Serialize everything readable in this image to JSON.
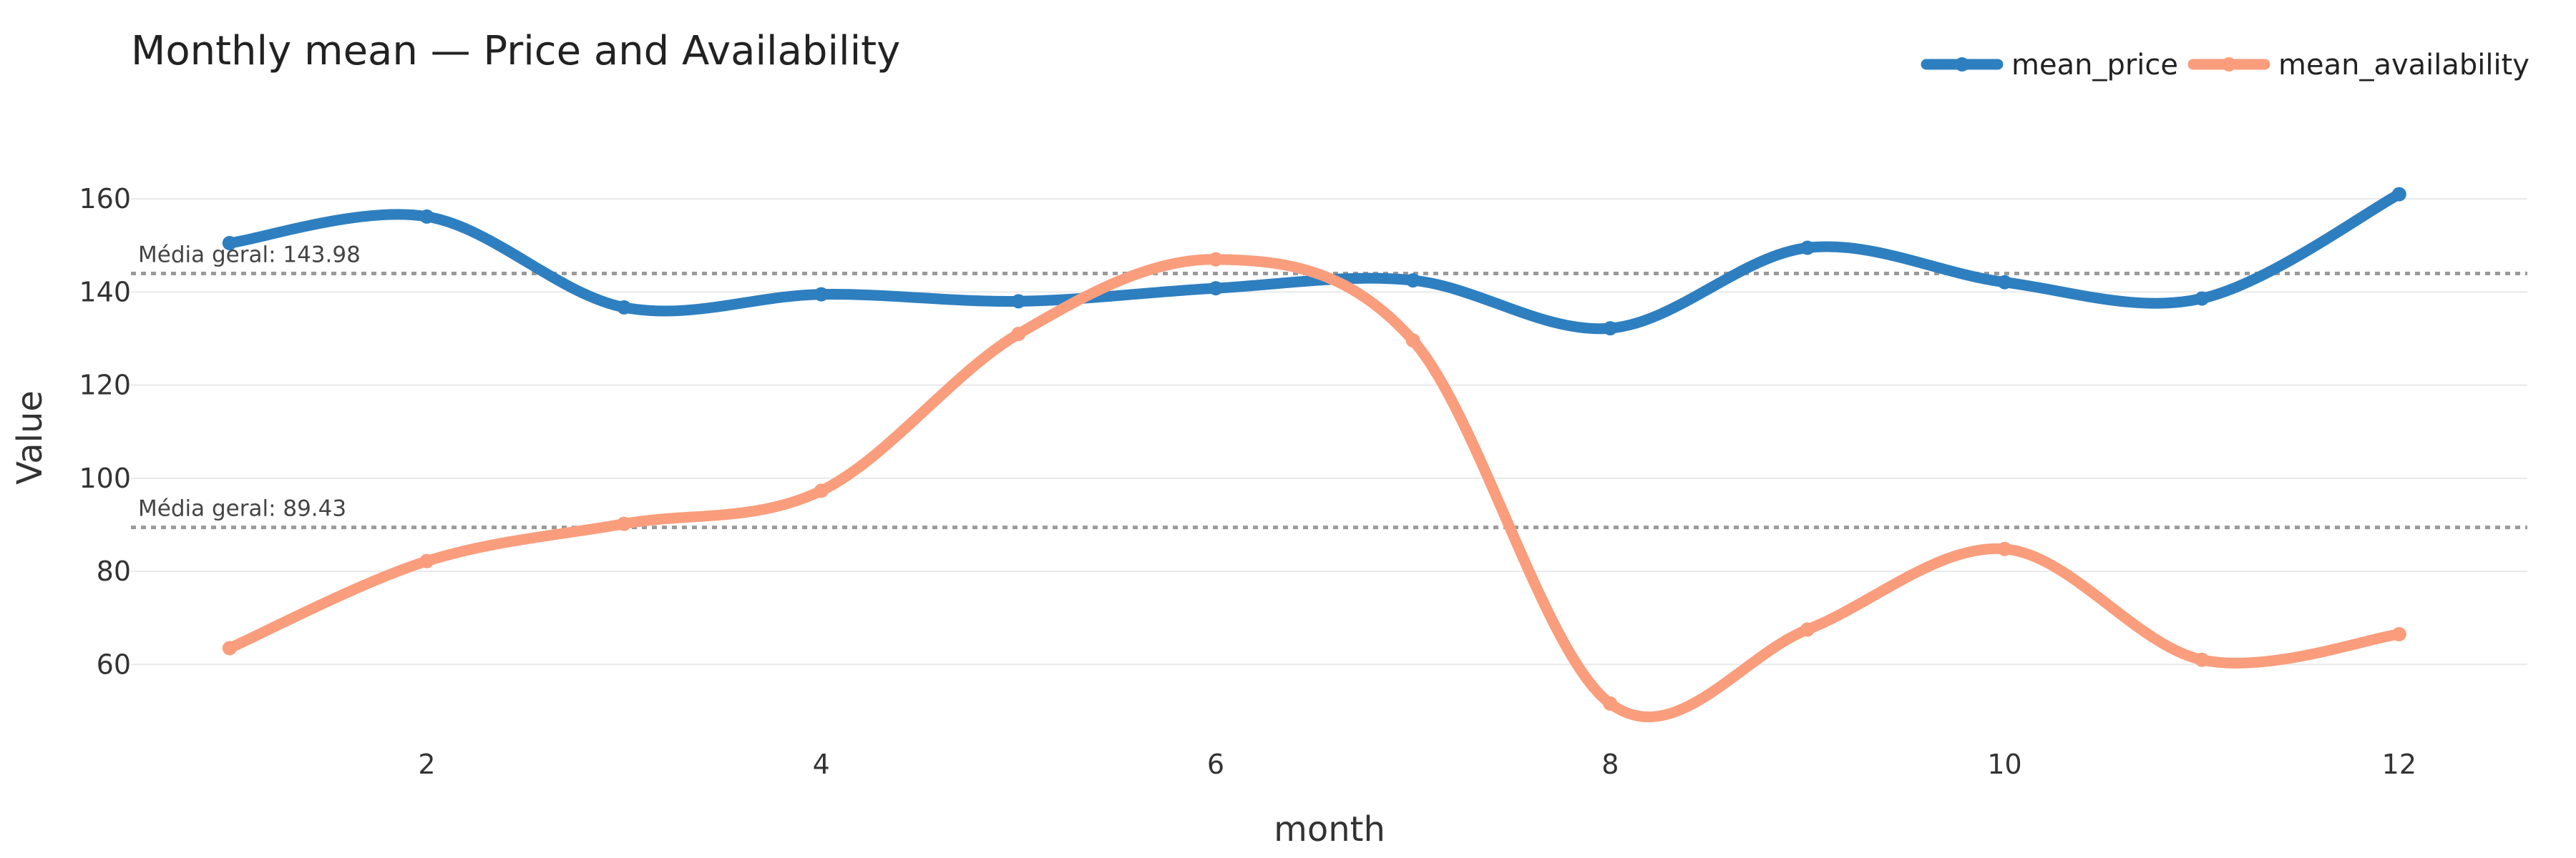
{
  "chart_data": {
    "type": "line",
    "title": "Monthly mean — Price and Availability",
    "xlabel": "month",
    "ylabel": "Value",
    "x": [
      1,
      2,
      3,
      4,
      5,
      6,
      7,
      8,
      9,
      10,
      11,
      12
    ],
    "xlim": [
      0.5,
      12.65
    ],
    "ylim": [
      43,
      172
    ],
    "xticks": [
      2,
      4,
      6,
      8,
      10,
      12
    ],
    "yticks": [
      60,
      80,
      100,
      120,
      140,
      160
    ],
    "grid": true,
    "legend_position": "top-right",
    "series": [
      {
        "name": "mean_price",
        "color": "#2e7fc0",
        "values": [
          150.5,
          156.2,
          136.7,
          139.5,
          138.0,
          140.8,
          142.5,
          132.2,
          149.5,
          142.1,
          138.6,
          161.0
        ]
      },
      {
        "name": "mean_availability",
        "color": "#fa9d7c",
        "values": [
          63.5,
          82.2,
          90.2,
          97.3,
          131.0,
          147.0,
          129.6,
          51.6,
          67.5,
          84.8,
          61.0,
          66.5
        ]
      }
    ],
    "annotations": [
      {
        "label": "Média geral: 143.98",
        "value": 143.98
      },
      {
        "label": "Média geral: 89.43",
        "value": 89.43
      }
    ],
    "reference_line_color": "#9a9a9a"
  }
}
